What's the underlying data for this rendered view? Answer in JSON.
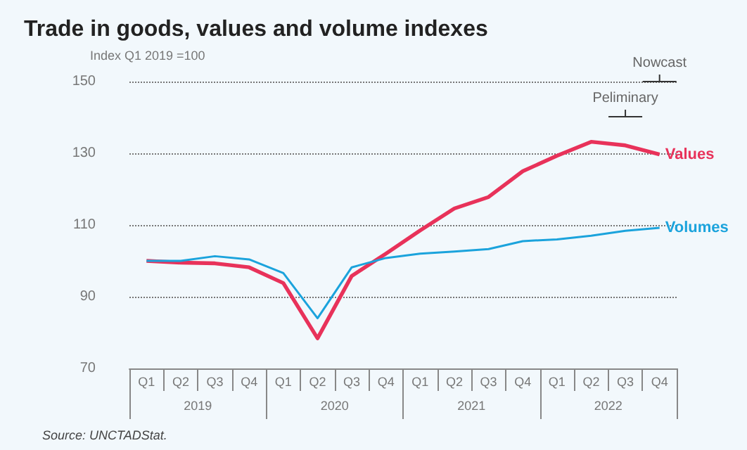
{
  "chart_data": {
    "type": "line",
    "title": "Trade in goods, values and volume indexes",
    "ylabel": "Index Q1 2019 =100",
    "categories": [
      "Q1",
      "Q2",
      "Q3",
      "Q4",
      "Q1",
      "Q2",
      "Q3",
      "Q4",
      "Q1",
      "Q2",
      "Q3",
      "Q4",
      "Q1",
      "Q2",
      "Q3",
      "Q4"
    ],
    "series": [
      {
        "name": "Values",
        "color": "#e8325a",
        "values": [
          100,
          99.5,
          99.3,
          98.2,
          93.8,
          78.4,
          95.8,
          102,
          108.5,
          114.6,
          117.8,
          125,
          129.3,
          133.2,
          132.2,
          129.7
        ]
      },
      {
        "name": "Volumes",
        "color": "#1ba3dc",
        "values": [
          100,
          100,
          101.3,
          100.4,
          96.6,
          84,
          98.2,
          100.8,
          102,
          102.6,
          103.3,
          105.5,
          106,
          107,
          108.4,
          109.2
        ]
      }
    ],
    "ylim": [
      70,
      150
    ],
    "yticks": [
      70,
      90,
      110,
      130,
      150
    ],
    "grid": "y",
    "legend": false,
    "marker": "none",
    "line_style": "solid",
    "annotations": [
      "Peliminary",
      "Nowcast",
      "2019",
      "2020",
      "2021",
      "2022",
      "Source: UNCTADStat."
    ]
  }
}
